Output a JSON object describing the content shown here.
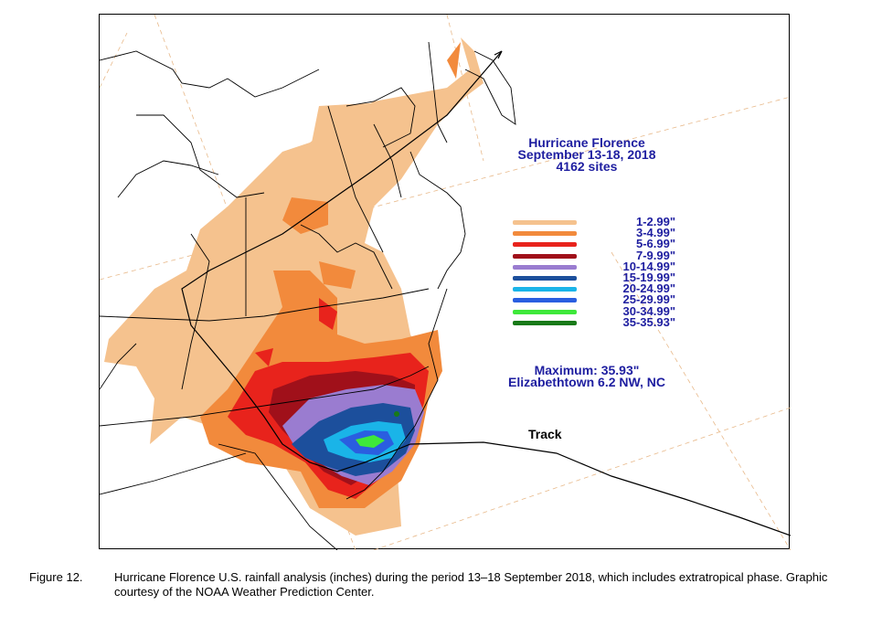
{
  "map": {
    "title_line1": "Hurricane Florence",
    "title_line2": "September 13-18, 2018",
    "title_line3": "4162 sites",
    "legend": [
      {
        "label": "1-2.99\"",
        "color": "#f5c28e"
      },
      {
        "label": "3-4.99\"",
        "color": "#f28a3c"
      },
      {
        "label": "5-6.99\"",
        "color": "#e8231c"
      },
      {
        "label": "7-9.99\"",
        "color": "#a0101a"
      },
      {
        "label": "10-14.99\"",
        "color": "#9a7cd0"
      },
      {
        "label": "15-19.99\"",
        "color": "#1c4f9c"
      },
      {
        "label": "20-24.99\"",
        "color": "#1ab4e8"
      },
      {
        "label": "25-29.99\"",
        "color": "#2a5ee0"
      },
      {
        "label": "30-34.99\"",
        "color": "#3ee83a"
      },
      {
        "label": "35-35.93\"",
        "color": "#187a18"
      }
    ],
    "max_line1": "Maximum: 35.93\"",
    "max_line2": "Elizabethtown 6.2 NW, NC",
    "track_label": "Track"
  },
  "caption": {
    "number": "Figure 12.",
    "text": "Hurricane Florence U.S. rainfall analysis (inches) during the period 13–18 September 2018, which includes extratropical phase. Graphic courtesy of the NOAA Weather Prediction Center."
  }
}
